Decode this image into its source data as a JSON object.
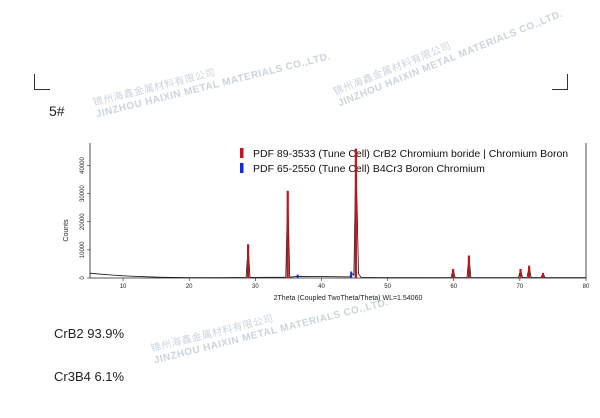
{
  "sample_id": "5#",
  "watermark": {
    "cn": "锦州海鑫金属材料有限公司",
    "en": "JINZHOU HAIXIN METAL MATERIALS CO.,LTD."
  },
  "results": [
    {
      "phase": "CrB2 93.9%"
    },
    {
      "phase": "Cr3B4 6.1%"
    }
  ],
  "chart_data": {
    "type": "line",
    "title": "",
    "xlabel": "2Theta (Coupled TwoTheta/Theta) WL=1.54060",
    "ylabel": "Counts",
    "xlim": [
      5,
      80
    ],
    "ylim": [
      0,
      48000
    ],
    "xticks": [
      10,
      20,
      30,
      40,
      50,
      60,
      70,
      80
    ],
    "yticks": [
      0,
      10000,
      20000,
      30000,
      40000
    ],
    "grid": false,
    "legend_position": "top-center",
    "legend": [
      {
        "label": "PDF 89-3533 (Tune Cell) CrB2 Chromium boride | Chromium Boron",
        "color": "#c0141c"
      },
      {
        "label": "PDF 65-2550 (Tune Cell) B4Cr3 Boron Chromium",
        "color": "#1a2bd6"
      }
    ],
    "series": [
      {
        "reference": "PDF 89-3533",
        "color": "#c0141c",
        "x": [
          28.9,
          34.9,
          45.2,
          59.9,
          62.3,
          70.1,
          71.4,
          73.5
        ],
        "y": [
          12000,
          31000,
          46000,
          3200,
          8000,
          3200,
          4400,
          1800
        ]
      },
      {
        "reference": "PDF 65-2550",
        "color": "#1a2bd6",
        "x": [
          36.4,
          44.5
        ],
        "y": [
          1200,
          2300
        ]
      }
    ],
    "pattern_color": "#111111",
    "pattern": {
      "x": [
        5,
        6,
        8,
        10,
        13,
        16,
        20,
        25,
        28.6,
        28.9,
        29.2,
        34.6,
        34.9,
        35.2,
        36.4,
        44.3,
        44.5,
        44.9,
        45.2,
        45.6,
        46,
        50,
        55,
        59.6,
        59.9,
        60.2,
        62,
        62.3,
        62.6,
        69.8,
        70.1,
        70.4,
        71.1,
        71.4,
        71.7,
        73.2,
        73.5,
        73.8,
        78,
        80
      ],
      "y": [
        1700,
        1500,
        1100,
        800,
        450,
        250,
        150,
        120,
        200,
        11000,
        200,
        300,
        31000,
        300,
        600,
        400,
        1800,
        1000,
        44000,
        1500,
        200,
        120,
        120,
        150,
        3000,
        150,
        150,
        7800,
        150,
        150,
        3000,
        150,
        200,
        4200,
        200,
        150,
        1600,
        120,
        100,
        100
      ]
    }
  }
}
